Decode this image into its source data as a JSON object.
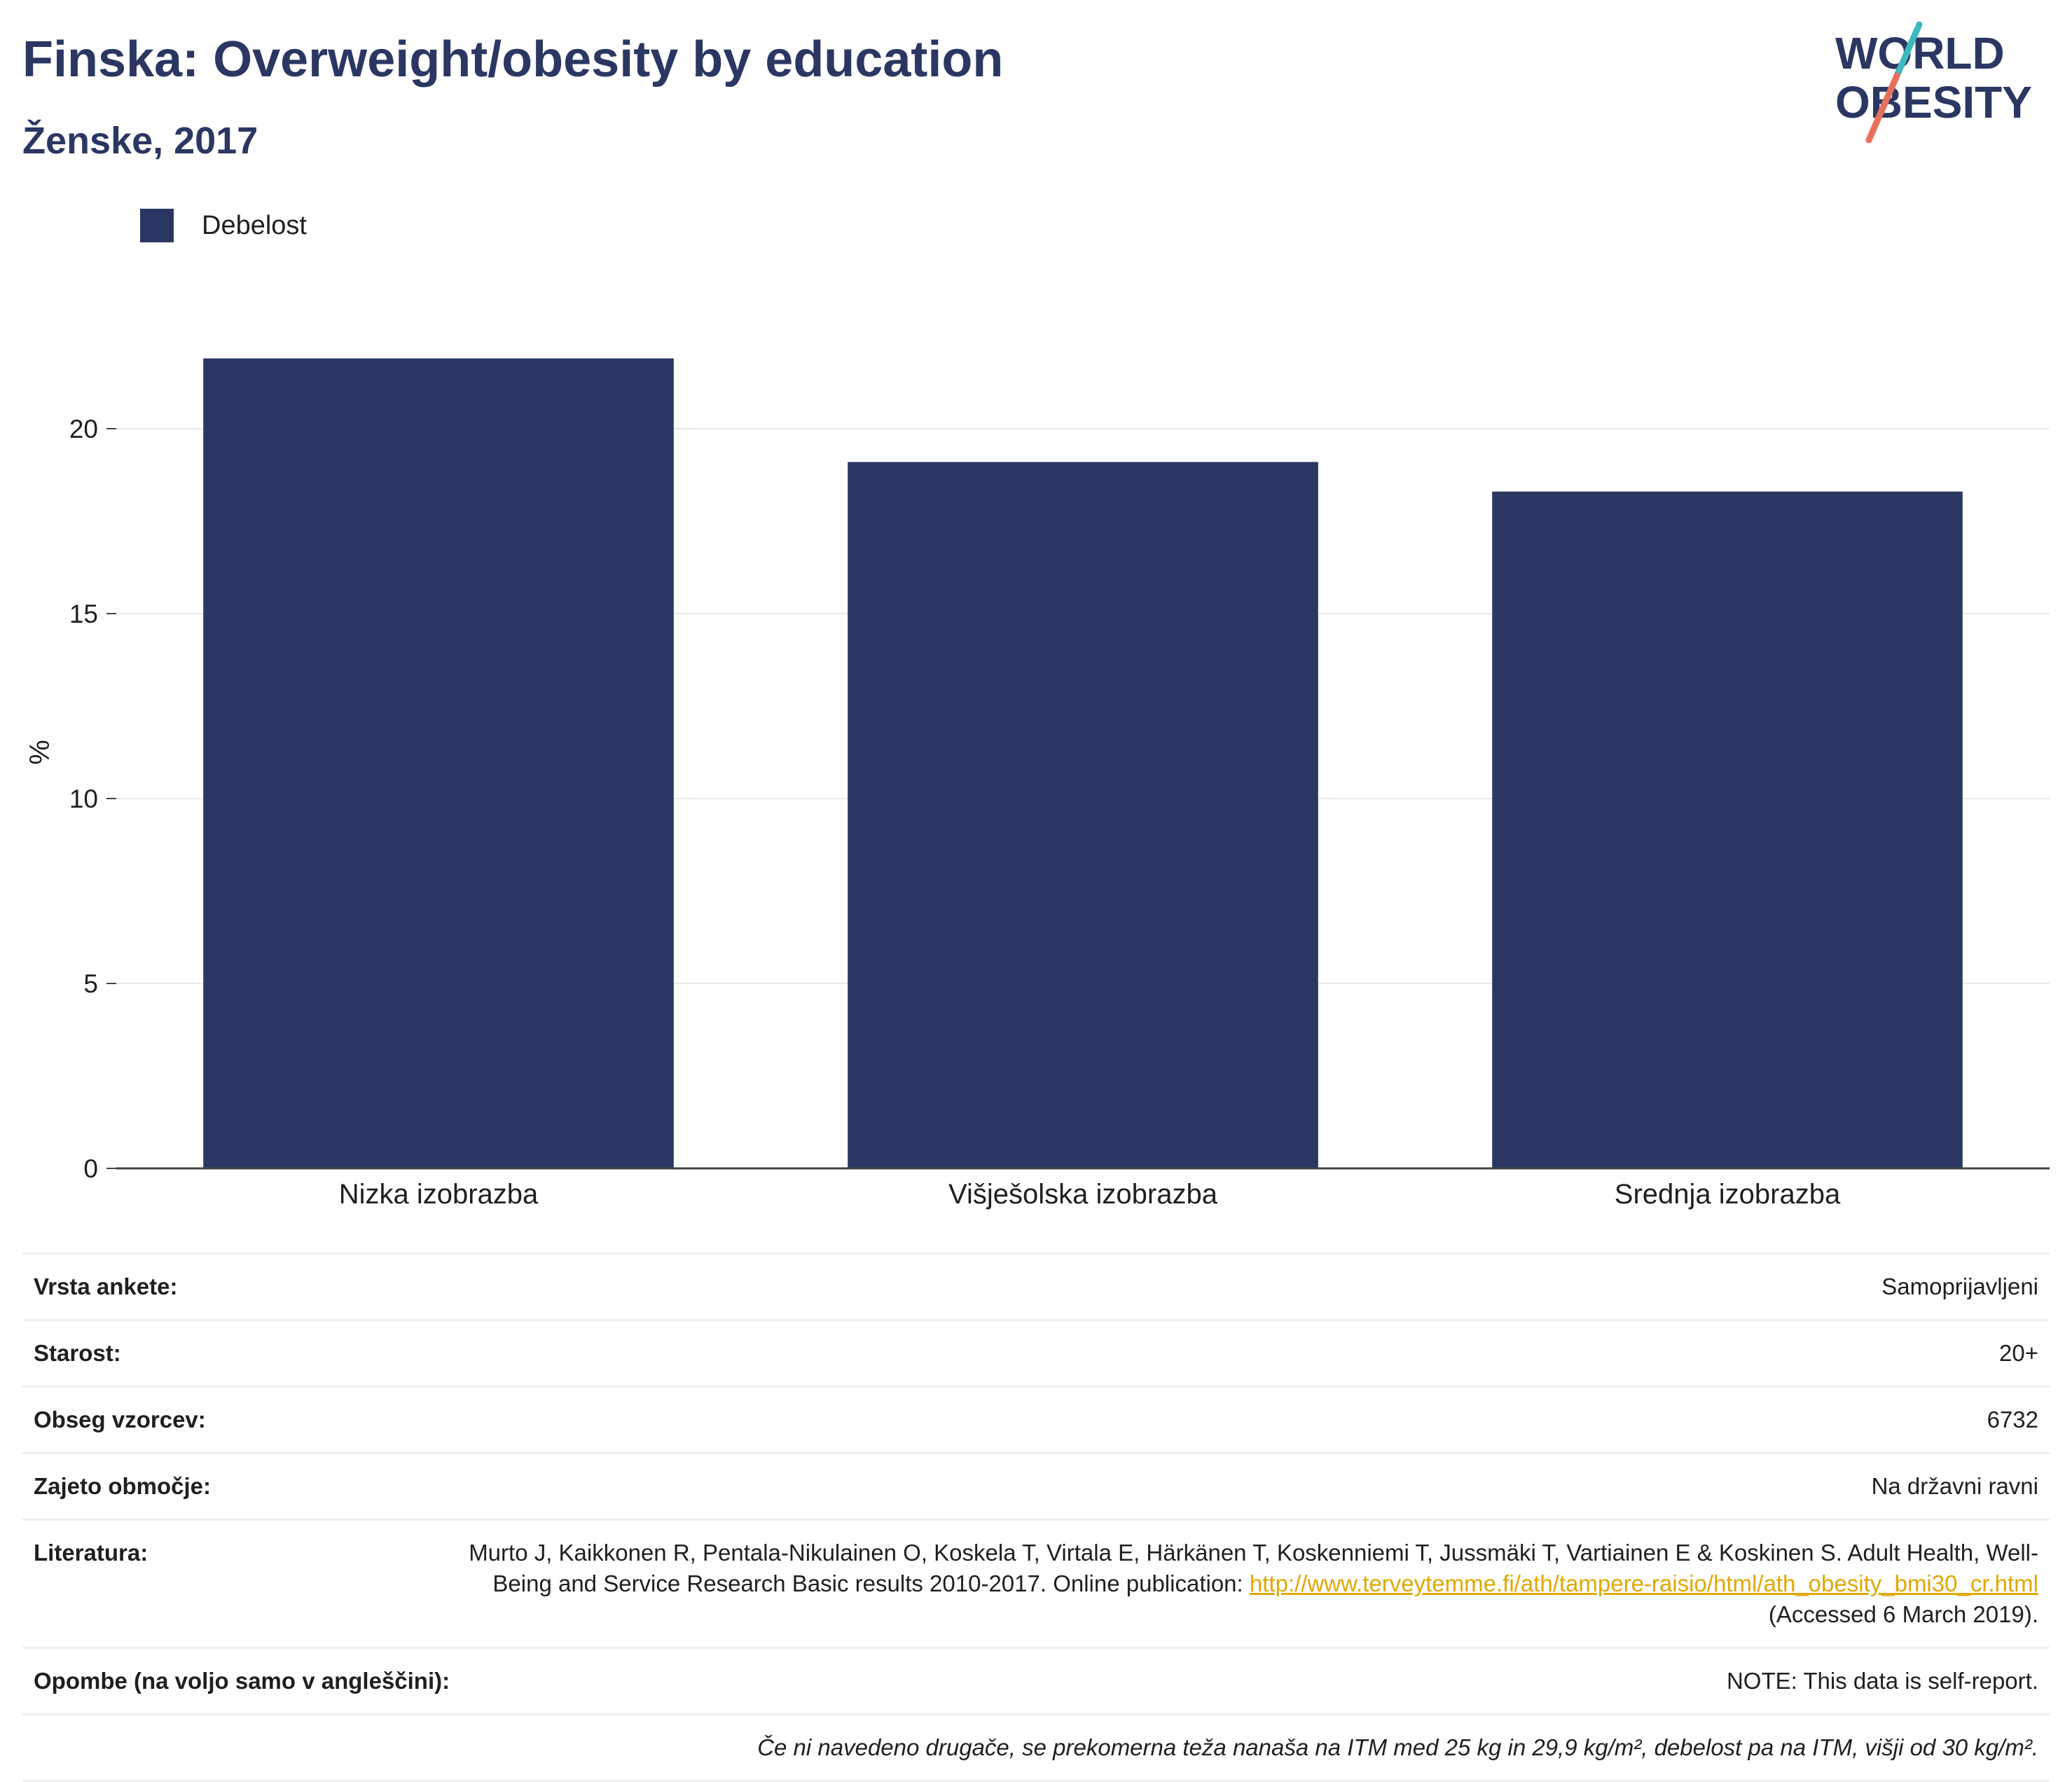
{
  "header": {
    "title": "Finska: Overweight/obesity by education",
    "subtitle": "Ženske, 2017",
    "logo_line1": "WORLD",
    "logo_line2": "OBESITY"
  },
  "colors": {
    "bar": "#2b3762",
    "accent_teal": "#3fb8c0",
    "accent_coral": "#e8705a",
    "link": "#e0a800"
  },
  "chart_data": {
    "type": "bar",
    "categories": [
      "Nizka izobrazba",
      "Višješolska izobrazba",
      "Srednja izobrazba"
    ],
    "series": [
      {
        "name": "Debelost",
        "values": [
          21.9,
          19.1,
          18.3
        ]
      }
    ],
    "ylabel": "%",
    "xlabel": "",
    "ylim": [
      0,
      22.5
    ],
    "yticks": [
      0,
      5,
      10,
      15,
      20
    ],
    "grid": true,
    "legend_position": "top-left"
  },
  "meta": {
    "survey_type": {
      "label": "Vrsta ankete:",
      "value": "Samoprijavljeni"
    },
    "age": {
      "label": "Starost:",
      "value": "20+"
    },
    "sample_size": {
      "label": "Obseg vzorcev:",
      "value": "6732"
    },
    "area": {
      "label": "Zajeto območje:",
      "value": "Na državni ravni"
    },
    "literature": {
      "label": "Literatura:",
      "text_before": "Murto J, Kaikkonen R, Pentala-Nikulainen O, Koskela T, Virtala E, Härkänen T, Koskenniemi T, Jussmäki T, Vartiainen E & Koskinen S. Adult Health, Well-Being and Service Research Basic results 2010-2017. Online publication: ",
      "link": "http://www.terveytemme.fi/ath/tampere-raisio/html/ath_obesity_bmi30_cr.html",
      "text_after": " (Accessed 6 March 2019)."
    },
    "notes": {
      "label": "Opombe (na voljo samo v angleščini):",
      "value": "NOTE: This data is self-report."
    },
    "footnote": "Če ni navedeno drugače, se prekomerna teža nanaša na ITM med 25 kg in 29,9 kg/m², debelost pa na ITM, višji od 30 kg/m²."
  }
}
